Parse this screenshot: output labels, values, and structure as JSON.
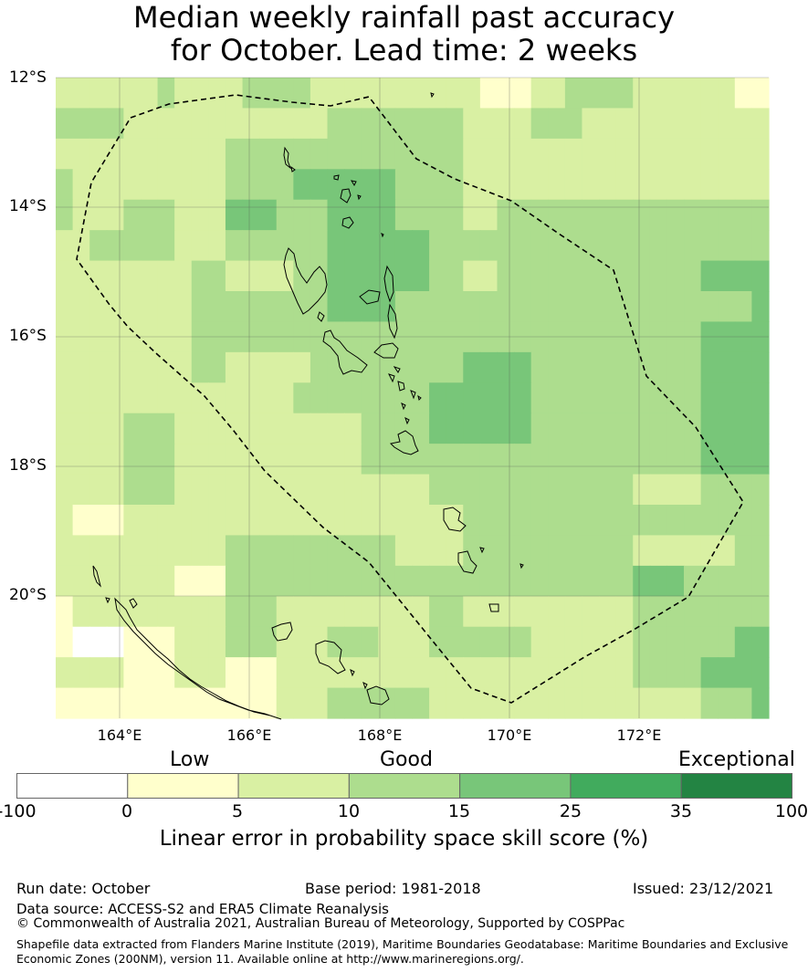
{
  "title": {
    "line1": "Median weekly rainfall past accuracy",
    "line2": "for October. Lead time: 2 weeks"
  },
  "map": {
    "latitude_labels": [
      "12°S",
      "14°S",
      "16°S",
      "18°S",
      "20°S"
    ],
    "longitude_labels": [
      "164°E",
      "166°E",
      "168°E",
      "170°E",
      "172°E"
    ],
    "grid_values": [
      [
        10,
        10,
        10,
        10,
        10,
        10,
        15,
        10,
        10,
        10,
        10,
        15,
        15,
        15,
        15,
        10,
        10,
        10,
        10,
        10,
        10,
        10,
        10,
        10,
        10,
        5,
        5,
        5,
        10,
        10,
        15,
        15,
        15,
        15,
        10,
        10,
        10,
        10,
        10,
        10,
        5,
        5
      ],
      [
        15,
        15,
        15,
        15,
        10,
        10,
        10,
        10,
        10,
        10,
        10,
        10,
        10,
        10,
        10,
        10,
        15,
        15,
        15,
        15,
        15,
        15,
        15,
        15,
        10,
        10,
        10,
        10,
        15,
        15,
        15,
        10,
        10,
        10,
        10,
        10,
        10,
        10,
        10,
        10,
        10,
        10
      ],
      [
        10,
        10,
        10,
        10,
        10,
        10,
        10,
        10,
        10,
        10,
        15,
        15,
        15,
        15,
        15,
        15,
        15,
        15,
        15,
        15,
        15,
        15,
        15,
        15,
        10,
        10,
        10,
        10,
        10,
        10,
        10,
        10,
        10,
        10,
        10,
        10,
        10,
        10,
        10,
        10,
        10,
        10
      ],
      [
        15,
        10,
        10,
        10,
        10,
        10,
        10,
        10,
        10,
        10,
        15,
        15,
        15,
        15,
        25,
        25,
        25,
        25,
        25,
        25,
        15,
        15,
        15,
        15,
        10,
        10,
        10,
        10,
        10,
        10,
        10,
        10,
        10,
        10,
        10,
        10,
        10,
        10,
        10,
        10,
        10,
        10
      ],
      [
        15,
        10,
        10,
        10,
        15,
        15,
        15,
        10,
        10,
        10,
        25,
        25,
        25,
        15,
        15,
        15,
        25,
        25,
        25,
        25,
        15,
        15,
        15,
        15,
        10,
        10,
        15,
        15,
        15,
        15,
        15,
        15,
        15,
        15,
        15,
        15,
        15,
        15,
        15,
        15,
        15,
        15
      ],
      [
        10,
        10,
        15,
        15,
        15,
        15,
        15,
        10,
        10,
        10,
        15,
        15,
        15,
        15,
        15,
        15,
        25,
        25,
        25,
        25,
        25,
        25,
        15,
        15,
        15,
        15,
        15,
        15,
        15,
        15,
        15,
        15,
        15,
        15,
        15,
        15,
        15,
        15,
        15,
        15,
        15,
        15
      ],
      [
        10,
        10,
        10,
        10,
        10,
        10,
        10,
        10,
        15,
        15,
        10,
        10,
        10,
        10,
        15,
        15,
        25,
        25,
        25,
        25,
        25,
        25,
        15,
        15,
        10,
        10,
        15,
        15,
        15,
        15,
        15,
        15,
        15,
        15,
        15,
        15,
        15,
        15,
        25,
        25,
        25,
        25
      ],
      [
        10,
        10,
        10,
        10,
        10,
        10,
        10,
        10,
        15,
        15,
        15,
        15,
        15,
        15,
        15,
        15,
        25,
        25,
        25,
        25,
        15,
        15,
        15,
        15,
        15,
        15,
        15,
        15,
        15,
        15,
        15,
        15,
        15,
        15,
        15,
        15,
        15,
        15,
        15,
        15,
        15,
        25
      ],
      [
        10,
        10,
        10,
        10,
        10,
        10,
        10,
        10,
        15,
        15,
        15,
        15,
        15,
        15,
        15,
        15,
        15,
        15,
        15,
        15,
        15,
        15,
        15,
        15,
        15,
        15,
        15,
        15,
        15,
        15,
        15,
        15,
        15,
        15,
        15,
        15,
        15,
        15,
        25,
        25,
        25,
        25
      ],
      [
        10,
        10,
        10,
        10,
        10,
        10,
        10,
        10,
        15,
        15,
        10,
        10,
        10,
        10,
        10,
        15,
        15,
        15,
        15,
        15,
        15,
        15,
        15,
        15,
        25,
        25,
        25,
        25,
        15,
        15,
        15,
        15,
        15,
        15,
        15,
        15,
        15,
        15,
        25,
        25,
        25,
        25
      ],
      [
        10,
        10,
        10,
        10,
        10,
        10,
        10,
        10,
        10,
        10,
        10,
        10,
        10,
        10,
        15,
        15,
        15,
        15,
        15,
        15,
        15,
        15,
        25,
        25,
        25,
        25,
        25,
        25,
        15,
        15,
        15,
        15,
        15,
        15,
        15,
        15,
        15,
        15,
        25,
        25,
        25,
        25
      ],
      [
        10,
        10,
        10,
        10,
        15,
        15,
        15,
        10,
        10,
        10,
        10,
        10,
        10,
        10,
        10,
        10,
        10,
        10,
        15,
        15,
        15,
        15,
        25,
        25,
        25,
        25,
        25,
        25,
        15,
        15,
        15,
        15,
        15,
        15,
        15,
        15,
        15,
        15,
        25,
        25,
        25,
        25
      ],
      [
        10,
        10,
        10,
        10,
        15,
        15,
        15,
        10,
        10,
        10,
        10,
        10,
        10,
        10,
        10,
        10,
        10,
        10,
        15,
        15,
        15,
        15,
        15,
        15,
        15,
        15,
        15,
        15,
        15,
        15,
        15,
        15,
        15,
        15,
        15,
        15,
        15,
        15,
        25,
        25,
        25,
        25
      ],
      [
        10,
        10,
        10,
        10,
        15,
        15,
        15,
        10,
        10,
        10,
        10,
        10,
        10,
        10,
        10,
        10,
        10,
        10,
        10,
        10,
        10,
        10,
        15,
        15,
        15,
        15,
        15,
        15,
        15,
        15,
        15,
        15,
        15,
        15,
        10,
        10,
        10,
        10,
        15,
        15,
        15,
        15
      ],
      [
        10,
        5,
        5,
        5,
        10,
        10,
        10,
        10,
        10,
        10,
        10,
        10,
        10,
        10,
        10,
        10,
        10,
        10,
        10,
        10,
        10,
        10,
        10,
        10,
        15,
        15,
        15,
        15,
        15,
        15,
        15,
        15,
        15,
        15,
        15,
        15,
        15,
        15,
        15,
        15,
        15,
        15
      ],
      [
        10,
        10,
        10,
        10,
        10,
        10,
        10,
        10,
        10,
        10,
        15,
        15,
        15,
        15,
        15,
        15,
        15,
        15,
        15,
        15,
        10,
        10,
        10,
        10,
        15,
        15,
        15,
        15,
        15,
        15,
        15,
        15,
        15,
        15,
        10,
        10,
        10,
        10,
        10,
        10,
        15,
        15
      ],
      [
        10,
        10,
        10,
        10,
        10,
        10,
        10,
        5,
        5,
        5,
        15,
        15,
        15,
        15,
        15,
        15,
        15,
        15,
        15,
        15,
        15,
        15,
        15,
        15,
        15,
        15,
        15,
        15,
        15,
        15,
        15,
        15,
        15,
        15,
        25,
        25,
        25,
        15,
        15,
        15,
        15,
        15
      ],
      [
        5,
        10,
        10,
        10,
        10,
        10,
        10,
        10,
        10,
        10,
        15,
        15,
        15,
        10,
        10,
        10,
        10,
        10,
        10,
        10,
        10,
        10,
        15,
        15,
        10,
        10,
        10,
        10,
        10,
        10,
        10,
        10,
        10,
        10,
        15,
        15,
        15,
        15,
        15,
        15,
        15,
        15
      ],
      [
        5,
        0,
        0,
        0,
        5,
        5,
        5,
        10,
        10,
        10,
        15,
        15,
        15,
        10,
        10,
        10,
        15,
        15,
        15,
        10,
        10,
        10,
        15,
        15,
        15,
        15,
        15,
        15,
        10,
        10,
        10,
        10,
        10,
        10,
        15,
        15,
        15,
        15,
        15,
        15,
        25,
        25
      ],
      [
        10,
        10,
        10,
        10,
        5,
        5,
        5,
        10,
        10,
        10,
        5,
        5,
        5,
        10,
        10,
        10,
        10,
        10,
        10,
        10,
        10,
        10,
        10,
        10,
        10,
        10,
        10,
        10,
        10,
        10,
        10,
        10,
        10,
        10,
        15,
        15,
        15,
        15,
        25,
        25,
        25,
        25
      ],
      [
        5,
        5,
        5,
        5,
        5,
        5,
        5,
        5,
        5,
        5,
        5,
        5,
        5,
        10,
        10,
        10,
        15,
        15,
        15,
        15,
        15,
        15,
        10,
        10,
        10,
        10,
        10,
        10,
        10,
        10,
        10,
        10,
        10,
        10,
        10,
        10,
        10,
        10,
        15,
        15,
        15,
        25
      ]
    ]
  },
  "colorbar": {
    "categories": [
      "Low",
      "Good",
      "Exceptional"
    ],
    "ticks": [
      "-100",
      "0",
      "5",
      "10",
      "15",
      "25",
      "35",
      "100"
    ],
    "colors": [
      "#ffffff",
      "#ffffcc",
      "#d9f0a3",
      "#addd8e",
      "#78c679",
      "#41ab5d",
      "#238443"
    ],
    "label": "Linear error in probability space skill score (%)"
  },
  "footer": {
    "run_date": "Run date: October",
    "base_period": "Base period: 1981-2018",
    "issued": "Issued: 23/12/2021",
    "data_source": "Data source: ACCESS-S2 and ERA5 Climate Reanalysis",
    "copyright": "© Commonwealth of Australia 2021, Australian Bureau of Meteorology, Supported by COSPPac",
    "shapefile": "Shapefile data extracted from Flanders Marine Institute (2019), Maritime Boundaries Geodatabase: Maritime Boundaries and Exclusive Economic Zones (200NM), version 11. Available online at http://www.marineregions.org/."
  }
}
